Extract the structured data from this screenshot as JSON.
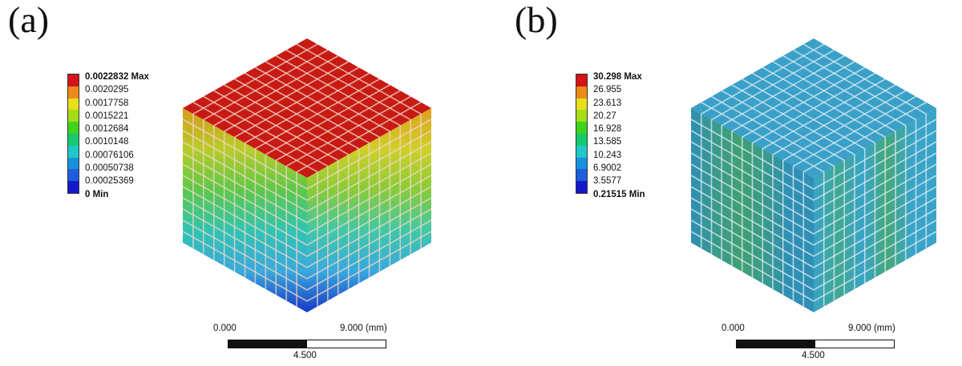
{
  "panel_a": {
    "label": "(a)",
    "legend": {
      "colors": [
        "#d3141a",
        "#ec8a1a",
        "#e8e01a",
        "#a6dc18",
        "#3ed31e",
        "#16c96e",
        "#1ec8c8",
        "#1891dc",
        "#1e5edc",
        "#1418c8"
      ],
      "labels": [
        "0.0022832 Max",
        "0.0020295",
        "0.0017758",
        "0.0015221",
        "0.0012684",
        "0.0010148",
        "0.00076106",
        "0.00050738",
        "0.00025369",
        "0 Min"
      ]
    },
    "model_colors": {
      "top": "#c81a14",
      "grid_line": "#f0d8c8",
      "left_gradient": [
        "#d89a20",
        "#b8cc28",
        "#5cc84a",
        "#30c4b4",
        "#3aa8dc",
        "#1838c8"
      ],
      "right_gradient": [
        "#e0a020",
        "#d0d028",
        "#88cc38",
        "#40c8a8",
        "#38a8e0",
        "#1838c8"
      ]
    },
    "scalebar": {
      "start": "0.000",
      "end": "9.000 (mm)",
      "mid": "4.500"
    }
  },
  "panel_b": {
    "label": "(b)",
    "legend": {
      "colors": [
        "#d3141a",
        "#ec8a1a",
        "#e8e01a",
        "#a6dc18",
        "#3ed31e",
        "#16c96e",
        "#1ec8c8",
        "#1891dc",
        "#1e5edc",
        "#1418c8"
      ],
      "labels": [
        "30.298 Max",
        "26.955",
        "23.613",
        "20.27",
        "16.928",
        "13.585",
        "10.243",
        "6.9002",
        "3.5577",
        "0.21515 Min"
      ]
    },
    "model_colors": {
      "top": "#3aa0c8",
      "grid_line": "#dceef4",
      "left_gradient": [
        "#2f8fb4",
        "#3a9a8c",
        "#40a070",
        "#3a9a8c",
        "#2f8fb4",
        "#2f8fb4"
      ],
      "right_gradient": [
        "#3aa4c8",
        "#40a890",
        "#3aa4c8",
        "#44a878",
        "#3aa4c8",
        "#3aa4c8"
      ]
    },
    "scalebar": {
      "start": "0.000",
      "end": "9.000 (mm)",
      "mid": "4.500"
    }
  }
}
